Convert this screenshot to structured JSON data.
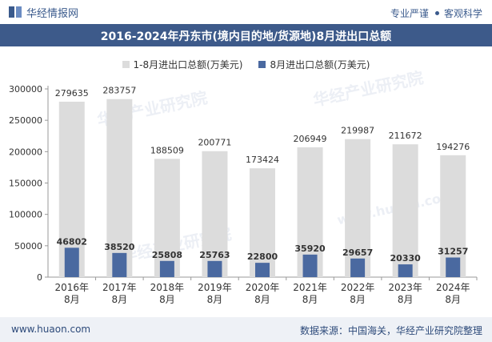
{
  "header": {
    "brand_name": "华经情报网",
    "slogan_left": "专业严谨",
    "slogan_right": "客观科学",
    "logo_icon": "huajing-logo-icon"
  },
  "title": "2016-2024年丹东市(境内目的地/货源地)8月进出口总额",
  "footer": {
    "url": "www.huaon.com",
    "source": "数据来源：中国海关，华经产业研究院整理"
  },
  "watermark": {
    "text": "华经产业研究院",
    "url_text": "www.huaon.com"
  },
  "colors": {
    "header_bar": "#3d5a8a",
    "series_cumulative": "#dcdcdc",
    "series_august": "#4a69a0",
    "axis": "#666666"
  },
  "chart_data": {
    "type": "bar",
    "categories": [
      "2016年\n8月",
      "2017年\n8月",
      "2018年\n8月",
      "2019年\n8月",
      "2020年\n8月",
      "2021年\n8月",
      "2022年\n8月",
      "2023年\n8月",
      "2024年\n8月"
    ],
    "series": [
      {
        "name": "1-8月进出口总额(万美元)",
        "values": [
          279635,
          283757,
          188509,
          200771,
          173424,
          206949,
          219987,
          211672,
          194276
        ]
      },
      {
        "name": "8月进出口总额(万美元)",
        "values": [
          46802,
          38520,
          25808,
          25763,
          22800,
          35920,
          29657,
          20330,
          31257
        ]
      }
    ],
    "ylim": [
      0,
      300000
    ],
    "yticks": [
      0,
      50000,
      100000,
      150000,
      200000,
      250000,
      300000
    ],
    "legend_position": "top-center",
    "grid": false,
    "layout": "overlapping"
  }
}
